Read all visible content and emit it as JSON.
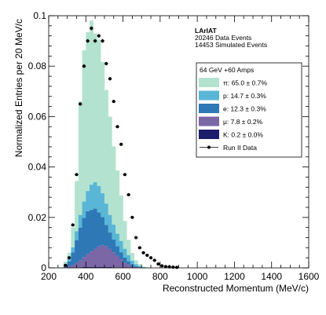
{
  "chart_data": {
    "type": "bar",
    "stacked": true,
    "xlabel": "Reconstructed Momentum (MeV/c)",
    "ylabel": "Normalized Entries per 20 MeV/c",
    "xlim": [
      200,
      1600
    ],
    "ylim": [
      0,
      0.1
    ],
    "xticks": [
      "200",
      "400",
      "600",
      "800",
      "1000",
      "1200",
      "1400",
      "1600"
    ],
    "yticks": [
      "0",
      "0.02",
      "0.04",
      "0.06",
      "0.08",
      "0.1"
    ],
    "bin_width": 20,
    "bin_centers": [
      290,
      310,
      330,
      350,
      370,
      390,
      410,
      430,
      450,
      470,
      490,
      510,
      530,
      550,
      570,
      590,
      610,
      630,
      650,
      670,
      690,
      710,
      730,
      750
    ],
    "series": [
      {
        "name": "K: 0.2 ± 0.0%",
        "color": "#1c1d6a",
        "values": [
          0,
          0,
          0.0001,
          0.0002,
          0.0002,
          0.0003,
          0.0003,
          0.0003,
          0.0003,
          0.0003,
          0.0003,
          0.0003,
          0.0003,
          0.0002,
          0.0002,
          0.0002,
          0.0001,
          0.0001,
          0,
          0,
          0,
          0,
          0,
          0
        ]
      },
      {
        "name": "μ: 7.8 ± 0.2%",
        "color": "#7b66a6",
        "values": [
          0.0002,
          0.0005,
          0.001,
          0.0018,
          0.0028,
          0.004,
          0.0052,
          0.0062,
          0.0072,
          0.0082,
          0.0088,
          0.0082,
          0.0072,
          0.006,
          0.0046,
          0.0032,
          0.002,
          0.0012,
          0.0007,
          0.0003,
          0.0001,
          0,
          0,
          0
        ]
      },
      {
        "name": "e: 12.3 ± 0.3%",
        "color": "#2e78b6",
        "values": [
          0.0005,
          0.002,
          0.005,
          0.009,
          0.013,
          0.0155,
          0.017,
          0.0165,
          0.016,
          0.0135,
          0.011,
          0.0085,
          0.0065,
          0.005,
          0.0038,
          0.0028,
          0.002,
          0.0013,
          0.0007,
          0.0004,
          0.0002,
          0.0001,
          0,
          0
        ]
      },
      {
        "name": "p: 14.7 ± 0.3%",
        "color": "#5ab6d6",
        "values": [
          0.0003,
          0.001,
          0.002,
          0.0035,
          0.005,
          0.0065,
          0.008,
          0.01,
          0.0105,
          0.0105,
          0.0095,
          0.0085,
          0.007,
          0.006,
          0.005,
          0.0045,
          0.0035,
          0.0025,
          0.0015,
          0.0008,
          0.0005,
          0.0002,
          0.0001,
          0
        ]
      },
      {
        "name": "π: 65.0 ± 0.7%",
        "color": "#b3e3d0",
        "values": [
          0.0015,
          0.0025,
          0.008,
          0.02,
          0.045,
          0.06,
          0.063,
          0.065,
          0.059,
          0.058,
          0.052,
          0.045,
          0.039,
          0.031,
          0.025,
          0.018,
          0.011,
          0.006,
          0.003,
          0.0015,
          0.0007,
          0.0002,
          0.0001,
          0
        ]
      }
    ],
    "data_series": {
      "name": "Run II Data",
      "color": "#000000",
      "x": [
        290,
        310,
        330,
        350,
        370,
        390,
        410,
        430,
        450,
        470,
        490,
        510,
        530,
        550,
        570,
        590,
        610,
        630,
        650,
        670,
        690,
        710,
        730,
        750,
        770,
        790,
        810,
        830,
        850,
        870,
        890
      ],
      "y": [
        0.001,
        0.004,
        0.017,
        0.037,
        0.065,
        0.08,
        0.09,
        0.095,
        0.09,
        0.092,
        0.09,
        0.081,
        0.075,
        0.066,
        0.056,
        0.049,
        0.037,
        0.029,
        0.02,
        0.012,
        0.008,
        0.006,
        0.005,
        0.004,
        0.003,
        0.0015,
        0.0008,
        0.0005,
        0.0004,
        0.0003,
        0.0002
      ]
    },
    "legend": {
      "placement": "top-right",
      "title": "64 GeV +60 Amps"
    },
    "annotations": [
      "LArIAT",
      "20246 Data Events",
      "14453 Simulated Events"
    ]
  }
}
